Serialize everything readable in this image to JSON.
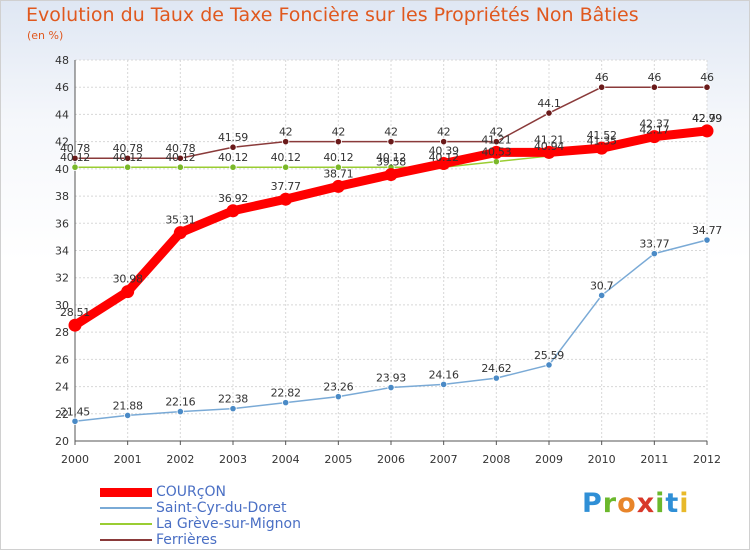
{
  "title": "Evolution du Taux de Taxe Foncière sur les Propriétés Non Bâties",
  "unit": "(en %)",
  "logo": {
    "text": "Proxiti",
    "letters": [
      "P",
      "r",
      "o",
      "x",
      "i",
      "t",
      "i"
    ],
    "colors": [
      "#2f8fd6",
      "#6bb82c",
      "#e8852a",
      "#d8382a",
      "#6bb82c",
      "#2f8fd6",
      "#e8b92a"
    ]
  },
  "chart_data": {
    "type": "line",
    "x": [
      "2000",
      "2001",
      "2002",
      "2003",
      "2004",
      "2005",
      "2006",
      "2007",
      "2008",
      "2009",
      "2010",
      "2011",
      "2012"
    ],
    "ylim": [
      20,
      48
    ],
    "yticks": [
      "20",
      "22",
      "24",
      "26",
      "28",
      "30",
      "32",
      "34",
      "36",
      "38",
      "40",
      "42",
      "44",
      "46",
      "48"
    ],
    "grid": true,
    "legend_position": "bottom-left",
    "series": [
      {
        "name": "Ferrières",
        "color": "#8a3a3a",
        "marker": "#6a1a1a",
        "width": 1.5,
        "values": [
          40.78,
          40.78,
          40.78,
          41.59,
          42,
          42,
          42,
          42,
          42,
          44.1,
          46,
          46,
          46
        ],
        "labels": [
          "40.78",
          "40.78",
          "40.78",
          "41.59",
          "42",
          "42",
          "42",
          "42",
          "42",
          "44.1",
          "46",
          "46",
          "46"
        ]
      },
      {
        "name": "La Grève-sur-Mignon",
        "color": "#9acd32",
        "marker": "#7ab82a",
        "width": 1.5,
        "values": [
          40.12,
          40.12,
          40.12,
          40.12,
          40.12,
          40.12,
          40.12,
          40.12,
          40.53,
          40.94,
          41.35,
          42.17,
          42.99
        ],
        "labels": [
          "40.12",
          "40.12",
          "40.12",
          "40.12",
          "40.12",
          "40.12",
          "40.12",
          "40.12",
          "40.53",
          "40.94",
          "41.35",
          "42.17",
          "42.99"
        ]
      },
      {
        "name": "Saint-Cyr-du-Doret",
        "color": "#7aaad6",
        "marker": "#4a8ac6",
        "width": 1.5,
        "values": [
          21.45,
          21.88,
          22.16,
          22.38,
          22.82,
          23.26,
          23.93,
          24.16,
          24.62,
          25.59,
          30.7,
          33.77,
          34.77
        ],
        "labels": [
          "21.45",
          "21.88",
          "22.16",
          "22.38",
          "22.82",
          "23.26",
          "23.93",
          "24.16",
          "24.62",
          "25.59",
          "30.7",
          "33.77",
          "34.77"
        ]
      },
      {
        "name": "COURçON",
        "color": "#ff0000",
        "marker": "#ff0000",
        "width": 9,
        "values": [
          28.51,
          30.98,
          35.31,
          36.92,
          37.77,
          38.71,
          39.58,
          40.39,
          41.21,
          41.21,
          41.52,
          42.37,
          42.79
        ],
        "labels": [
          "28.51",
          "30.98",
          "35.31",
          "36.92",
          "37.77",
          "38.71",
          "39.58",
          "40.39",
          "41.21",
          "41.21",
          "41.52",
          "42.37",
          "42.79"
        ]
      }
    ],
    "legend": [
      "COURçON",
      "Saint-Cyr-du-Doret",
      "La Grève-sur-Mignon",
      "Ferrières"
    ]
  }
}
